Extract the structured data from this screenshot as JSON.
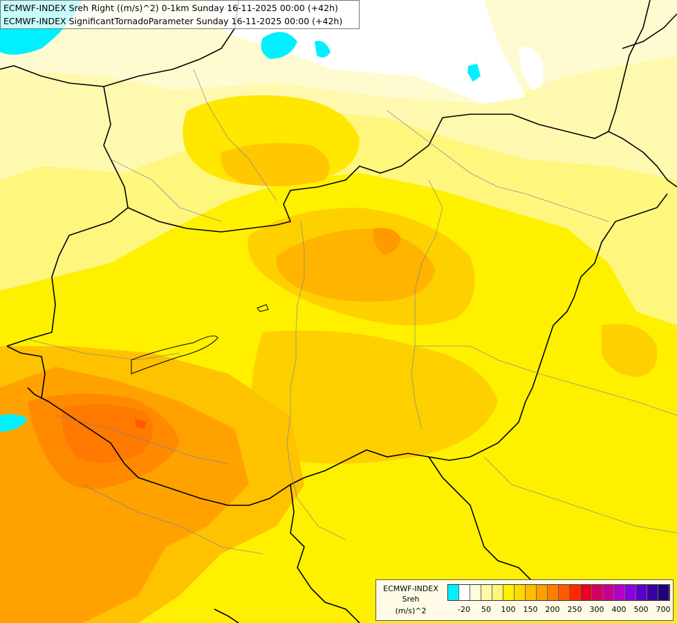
{
  "title": {
    "line1": "ECMWF-INDEX Sreh Right ((m/s)^2) 0-1km Sunday 16-11-2025 00:00 (+42h)",
    "line2": "ECMWF-INDEX SignificantTornadoParameter Sunday 16-11-2025 00:00 (+42h)"
  },
  "legend": {
    "source": "ECMWF-INDEX",
    "parameter": "Sreh",
    "unit": "(m/s)^2",
    "colors": [
      "#00f0ff",
      "#ffffff",
      "#fffbd8",
      "#fff8a8",
      "#fff47a",
      "#fff000",
      "#ffd800",
      "#ffbc00",
      "#ff9f00",
      "#ff7e00",
      "#ff5a00",
      "#ff2800",
      "#e80020",
      "#d20060",
      "#c80090",
      "#b400c8",
      "#8c00dc",
      "#5a00c8",
      "#3c00a0",
      "#1e0078"
    ],
    "ticks": [
      "-20",
      "50",
      "100",
      "150",
      "200",
      "250",
      "300",
      "400",
      "500",
      "700"
    ]
  }
}
